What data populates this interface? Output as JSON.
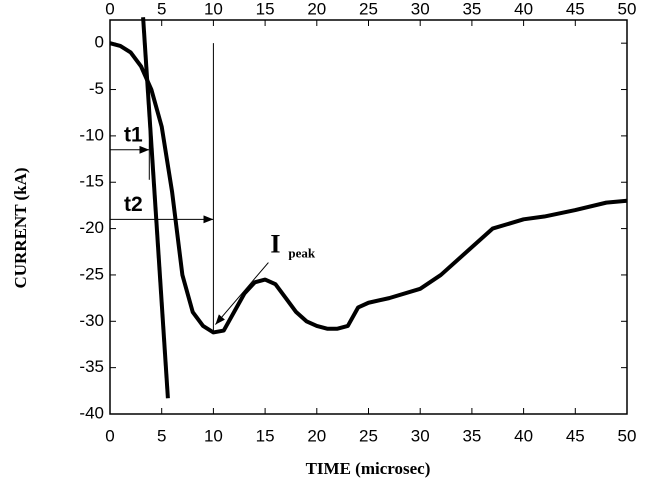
{
  "chart_data": {
    "type": "line",
    "xlabel": "TIME (microsec)",
    "ylabel": "CURRENT (kA)",
    "xlim": [
      0,
      50
    ],
    "xticks": [
      0,
      5,
      10,
      15,
      20,
      25,
      30,
      35,
      40,
      45,
      50
    ],
    "ylim": [
      -40,
      2.5
    ],
    "yticks": [
      0,
      -5,
      -10,
      -15,
      -20,
      -25,
      -30,
      -35,
      -40
    ],
    "series": [
      {
        "color": "#000000",
        "x": [
          0,
          1,
          2,
          3,
          4,
          5,
          6,
          7,
          8,
          9,
          10,
          11,
          12,
          13,
          14,
          15,
          16,
          17,
          18,
          19,
          20,
          21,
          22,
          23,
          24,
          25,
          27,
          30,
          32,
          35,
          37,
          40,
          42,
          45,
          48,
          50
        ],
        "values": [
          0,
          -0.3,
          -1,
          -2.5,
          -5,
          -9,
          -16,
          -25,
          -29,
          -30.5,
          -31.2,
          -31,
          -29,
          -27,
          -25.8,
          -25.5,
          -26,
          -27.5,
          -29,
          -30,
          -30.5,
          -30.8,
          -30.8,
          -30.5,
          -28.5,
          -28,
          -27.5,
          -26.5,
          -25,
          -22,
          -20,
          -19,
          -18.7,
          -18,
          -17.2,
          -17
        ]
      },
      {
        "color": "#000000",
        "x": [
          3.2,
          5.6
        ],
        "values": [
          2.8,
          -38.3
        ]
      }
    ],
    "annotations": [
      {
        "text": "t1",
        "x": 3.8,
        "y": -11.5
      },
      {
        "text": "t2",
        "x": 10,
        "y": -19
      },
      {
        "text": "I",
        "sub": "peak",
        "x": 10,
        "y": -31
      }
    ]
  }
}
